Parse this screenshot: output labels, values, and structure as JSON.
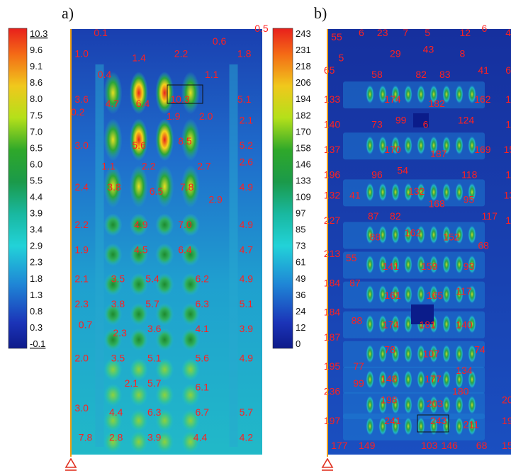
{
  "chart_data": [
    {
      "type": "heatmap",
      "panel_label": "a)",
      "legend": [
        "10.3",
        "9.6",
        "9.1",
        "8.6",
        "8.0",
        "7.5",
        "7.0",
        "6.5",
        "6.0",
        "5.5",
        "4.4",
        "3.9",
        "3.4",
        "2.9",
        "2.3",
        "1.8",
        "1.3",
        "0.8",
        "0.3",
        "-0.1"
      ],
      "legend_underlined": [
        "10.3",
        "-0.1"
      ],
      "range": [
        -0.1,
        10.3
      ],
      "values": [
        {
          "text": "0.1",
          "x": 0.12,
          "y": 0.0
        },
        {
          "text": "0.6",
          "x": 0.74,
          "y": 0.02
        },
        {
          "text": "0.5",
          "x": 0.96,
          "y": -0.01
        },
        {
          "text": "1.0",
          "x": 0.02,
          "y": 0.05
        },
        {
          "text": "1.4",
          "x": 0.32,
          "y": 0.06
        },
        {
          "text": "2.2",
          "x": 0.54,
          "y": 0.05
        },
        {
          "text": "1.8",
          "x": 0.87,
          "y": 0.05
        },
        {
          "text": "0.4",
          "x": 0.14,
          "y": 0.1
        },
        {
          "text": "1.1",
          "x": 0.7,
          "y": 0.1
        },
        {
          "text": "3.6",
          "x": 0.02,
          "y": 0.16
        },
        {
          "text": "4.7",
          "x": 0.18,
          "y": 0.17
        },
        {
          "text": "6.4",
          "x": 0.34,
          "y": 0.17
        },
        {
          "text": "10.3",
          "x": 0.52,
          "y": 0.16
        },
        {
          "text": "5.1",
          "x": 0.87,
          "y": 0.16
        },
        {
          "text": "0.2",
          "x": 0.0,
          "y": 0.19
        },
        {
          "text": "1.9",
          "x": 0.5,
          "y": 0.2
        },
        {
          "text": "2.0",
          "x": 0.67,
          "y": 0.2
        },
        {
          "text": "2.1",
          "x": 0.88,
          "y": 0.21
        },
        {
          "text": "3.0",
          "x": 0.02,
          "y": 0.27
        },
        {
          "text": "5.6",
          "x": 0.32,
          "y": 0.27
        },
        {
          "text": "8.5",
          "x": 0.56,
          "y": 0.26
        },
        {
          "text": "5.2",
          "x": 0.88,
          "y": 0.27
        },
        {
          "text": "1.1",
          "x": 0.16,
          "y": 0.32
        },
        {
          "text": "2.2",
          "x": 0.37,
          "y": 0.32
        },
        {
          "text": "2.7",
          "x": 0.66,
          "y": 0.32
        },
        {
          "text": "2.6",
          "x": 0.88,
          "y": 0.31
        },
        {
          "text": "2.4",
          "x": 0.02,
          "y": 0.37
        },
        {
          "text": "3.8",
          "x": 0.19,
          "y": 0.37
        },
        {
          "text": "6.5",
          "x": 0.41,
          "y": 0.38
        },
        {
          "text": "7.8",
          "x": 0.57,
          "y": 0.37
        },
        {
          "text": "4.9",
          "x": 0.88,
          "y": 0.37
        },
        {
          "text": "2.9",
          "x": 0.72,
          "y": 0.4
        },
        {
          "text": "2.2",
          "x": 0.02,
          "y": 0.46
        },
        {
          "text": "4.9",
          "x": 0.33,
          "y": 0.46
        },
        {
          "text": "7.0",
          "x": 0.56,
          "y": 0.46
        },
        {
          "text": "4.9",
          "x": 0.88,
          "y": 0.46
        },
        {
          "text": "1.9",
          "x": 0.02,
          "y": 0.52
        },
        {
          "text": "4.5",
          "x": 0.33,
          "y": 0.52
        },
        {
          "text": "6.4",
          "x": 0.56,
          "y": 0.52
        },
        {
          "text": "4.7",
          "x": 0.88,
          "y": 0.52
        },
        {
          "text": "2.1",
          "x": 0.02,
          "y": 0.59
        },
        {
          "text": "3.5",
          "x": 0.21,
          "y": 0.59
        },
        {
          "text": "5.4",
          "x": 0.39,
          "y": 0.59
        },
        {
          "text": "6.2",
          "x": 0.65,
          "y": 0.59
        },
        {
          "text": "4.9",
          "x": 0.88,
          "y": 0.59
        },
        {
          "text": "2.3",
          "x": 0.02,
          "y": 0.65
        },
        {
          "text": "3.8",
          "x": 0.21,
          "y": 0.65
        },
        {
          "text": "5.7",
          "x": 0.39,
          "y": 0.65
        },
        {
          "text": "6.3",
          "x": 0.65,
          "y": 0.65
        },
        {
          "text": "5.1",
          "x": 0.88,
          "y": 0.65
        },
        {
          "text": "0.7",
          "x": 0.04,
          "y": 0.7
        },
        {
          "text": "2.3",
          "x": 0.22,
          "y": 0.72
        },
        {
          "text": "3.6",
          "x": 0.4,
          "y": 0.71
        },
        {
          "text": "4.1",
          "x": 0.65,
          "y": 0.71
        },
        {
          "text": "3.9",
          "x": 0.88,
          "y": 0.71
        },
        {
          "text": "2.0",
          "x": 0.02,
          "y": 0.78
        },
        {
          "text": "3.5",
          "x": 0.21,
          "y": 0.78
        },
        {
          "text": "5.1",
          "x": 0.4,
          "y": 0.78
        },
        {
          "text": "5.6",
          "x": 0.65,
          "y": 0.78
        },
        {
          "text": "4.9",
          "x": 0.88,
          "y": 0.78
        },
        {
          "text": "2.1",
          "x": 0.28,
          "y": 0.84
        },
        {
          "text": "5.7",
          "x": 0.4,
          "y": 0.84
        },
        {
          "text": "6.1",
          "x": 0.65,
          "y": 0.85
        },
        {
          "text": "3.0",
          "x": 0.02,
          "y": 0.9
        },
        {
          "text": "4.4",
          "x": 0.2,
          "y": 0.91
        },
        {
          "text": "6.3",
          "x": 0.4,
          "y": 0.91
        },
        {
          "text": "6.7",
          "x": 0.65,
          "y": 0.91
        },
        {
          "text": "5.7",
          "x": 0.88,
          "y": 0.91
        },
        {
          "text": "7.8",
          "x": 0.04,
          "y": 0.97
        },
        {
          "text": "2.8",
          "x": 0.2,
          "y": 0.97
        },
        {
          "text": "3.9",
          "x": 0.4,
          "y": 0.97
        },
        {
          "text": "4.4",
          "x": 0.64,
          "y": 0.97
        },
        {
          "text": "4.2",
          "x": 0.88,
          "y": 0.97
        }
      ]
    },
    {
      "type": "heatmap",
      "panel_label": "b)",
      "legend": [
        "243",
        "231",
        "218",
        "206",
        "194",
        "182",
        "170",
        "158",
        "146",
        "133",
        "109",
        "97",
        "85",
        "73",
        "61",
        "49",
        "36",
        "24",
        "12",
        "0"
      ],
      "range": [
        0,
        243
      ],
      "values": [
        {
          "text": "55",
          "x": 0.02,
          "y": 0.01
        },
        {
          "text": "6",
          "x": 0.17,
          "y": 0.0
        },
        {
          "text": "23",
          "x": 0.27,
          "y": 0.0
        },
        {
          "text": "7",
          "x": 0.41,
          "y": 0.0
        },
        {
          "text": "5",
          "x": 0.53,
          "y": 0.0
        },
        {
          "text": "12",
          "x": 0.72,
          "y": 0.0
        },
        {
          "text": "6",
          "x": 0.84,
          "y": -0.01
        },
        {
          "text": "4",
          "x": 0.97,
          "y": 0.0
        },
        {
          "text": "29",
          "x": 0.34,
          "y": 0.05
        },
        {
          "text": "43",
          "x": 0.52,
          "y": 0.04
        },
        {
          "text": "8",
          "x": 0.72,
          "y": 0.05
        },
        {
          "text": "5",
          "x": 0.06,
          "y": 0.06
        },
        {
          "text": "65",
          "x": -0.02,
          "y": 0.09
        },
        {
          "text": "58",
          "x": 0.24,
          "y": 0.1
        },
        {
          "text": "82",
          "x": 0.48,
          "y": 0.1
        },
        {
          "text": "83",
          "x": 0.61,
          "y": 0.1
        },
        {
          "text": "41",
          "x": 0.82,
          "y": 0.09
        },
        {
          "text": "6",
          "x": 0.97,
          "y": 0.09
        },
        {
          "text": "133",
          "x": -0.02,
          "y": 0.16
        },
        {
          "text": "174",
          "x": 0.31,
          "y": 0.16
        },
        {
          "text": "182",
          "x": 0.55,
          "y": 0.17
        },
        {
          "text": "162",
          "x": 0.8,
          "y": 0.16
        },
        {
          "text": "1",
          "x": 0.97,
          "y": 0.16
        },
        {
          "text": "140",
          "x": -0.02,
          "y": 0.22
        },
        {
          "text": "73",
          "x": 0.24,
          "y": 0.22
        },
        {
          "text": "99",
          "x": 0.37,
          "y": 0.21
        },
        {
          "text": "6",
          "x": 0.52,
          "y": 0.22
        },
        {
          "text": "124",
          "x": 0.71,
          "y": 0.21
        },
        {
          "text": "1",
          "x": 0.97,
          "y": 0.22
        },
        {
          "text": "137",
          "x": -0.02,
          "y": 0.28
        },
        {
          "text": "170",
          "x": 0.31,
          "y": 0.28
        },
        {
          "text": "187",
          "x": 0.56,
          "y": 0.29
        },
        {
          "text": "169",
          "x": 0.8,
          "y": 0.28
        },
        {
          "text": "15",
          "x": 0.96,
          "y": 0.28
        },
        {
          "text": "196",
          "x": -0.02,
          "y": 0.34
        },
        {
          "text": "96",
          "x": 0.24,
          "y": 0.34
        },
        {
          "text": "54",
          "x": 0.38,
          "y": 0.33
        },
        {
          "text": "118",
          "x": 0.73,
          "y": 0.34
        },
        {
          "text": "1",
          "x": 0.97,
          "y": 0.34
        },
        {
          "text": "132",
          "x": -0.02,
          "y": 0.39
        },
        {
          "text": "41",
          "x": 0.12,
          "y": 0.39
        },
        {
          "text": "132",
          "x": 0.44,
          "y": 0.38
        },
        {
          "text": "168",
          "x": 0.55,
          "y": 0.41
        },
        {
          "text": "95",
          "x": 0.74,
          "y": 0.4
        },
        {
          "text": "13",
          "x": 0.96,
          "y": 0.39
        },
        {
          "text": "227",
          "x": -0.02,
          "y": 0.45
        },
        {
          "text": "87",
          "x": 0.22,
          "y": 0.44
        },
        {
          "text": "82",
          "x": 0.34,
          "y": 0.44
        },
        {
          "text": "117",
          "x": 0.84,
          "y": 0.44
        },
        {
          "text": "1",
          "x": 0.97,
          "y": 0.45
        },
        {
          "text": "88",
          "x": 0.23,
          "y": 0.49
        },
        {
          "text": "162",
          "x": 0.42,
          "y": 0.48
        },
        {
          "text": "152",
          "x": 0.63,
          "y": 0.49
        },
        {
          "text": "68",
          "x": 0.82,
          "y": 0.51
        },
        {
          "text": "213",
          "x": -0.02,
          "y": 0.53
        },
        {
          "text": "55",
          "x": 0.1,
          "y": 0.54
        },
        {
          "text": "141",
          "x": 0.3,
          "y": 0.56
        },
        {
          "text": "159",
          "x": 0.51,
          "y": 0.56
        },
        {
          "text": "93",
          "x": 0.74,
          "y": 0.56
        },
        {
          "text": "184",
          "x": -0.02,
          "y": 0.6
        },
        {
          "text": "87",
          "x": 0.12,
          "y": 0.6
        },
        {
          "text": "161",
          "x": 0.31,
          "y": 0.63
        },
        {
          "text": "165",
          "x": 0.54,
          "y": 0.63
        },
        {
          "text": "117",
          "x": 0.7,
          "y": 0.62
        },
        {
          "text": "184",
          "x": -0.02,
          "y": 0.67
        },
        {
          "text": "88",
          "x": 0.13,
          "y": 0.69
        },
        {
          "text": "174",
          "x": 0.3,
          "y": 0.7
        },
        {
          "text": "181",
          "x": 0.5,
          "y": 0.7
        },
        {
          "text": "140",
          "x": 0.7,
          "y": 0.7
        },
        {
          "text": "187",
          "x": -0.02,
          "y": 0.73
        },
        {
          "text": "78",
          "x": 0.31,
          "y": 0.76
        },
        {
          "text": "107",
          "x": 0.52,
          "y": 0.77
        },
        {
          "text": "74",
          "x": 0.8,
          "y": 0.76
        },
        {
          "text": "195",
          "x": -0.02,
          "y": 0.8
        },
        {
          "text": "77",
          "x": 0.14,
          "y": 0.8
        },
        {
          "text": "134",
          "x": 0.7,
          "y": 0.81
        },
        {
          "text": "99",
          "x": 0.14,
          "y": 0.84
        },
        {
          "text": "148",
          "x": 0.29,
          "y": 0.83
        },
        {
          "text": "177",
          "x": 0.53,
          "y": 0.83
        },
        {
          "text": "236",
          "x": -0.02,
          "y": 0.86
        },
        {
          "text": "180",
          "x": 0.68,
          "y": 0.86
        },
        {
          "text": "198",
          "x": 0.29,
          "y": 0.88
        },
        {
          "text": "203",
          "x": 0.54,
          "y": 0.89
        },
        {
          "text": "20",
          "x": 0.95,
          "y": 0.88
        },
        {
          "text": "197",
          "x": -0.02,
          "y": 0.93
        },
        {
          "text": "241",
          "x": 0.31,
          "y": 0.93
        },
        {
          "text": "243",
          "x": 0.56,
          "y": 0.93
        },
        {
          "text": "211",
          "x": 0.74,
          "y": 0.94
        },
        {
          "text": "19",
          "x": 0.95,
          "y": 0.93
        },
        {
          "text": "177",
          "x": 0.02,
          "y": 0.99
        },
        {
          "text": "149",
          "x": 0.17,
          "y": 0.99
        },
        {
          "text": "103",
          "x": 0.51,
          "y": 0.99
        },
        {
          "text": "146",
          "x": 0.62,
          "y": 0.99
        },
        {
          "text": "68",
          "x": 0.81,
          "y": 0.99
        },
        {
          "text": "15",
          "x": 0.95,
          "y": 0.99
        }
      ]
    }
  ]
}
